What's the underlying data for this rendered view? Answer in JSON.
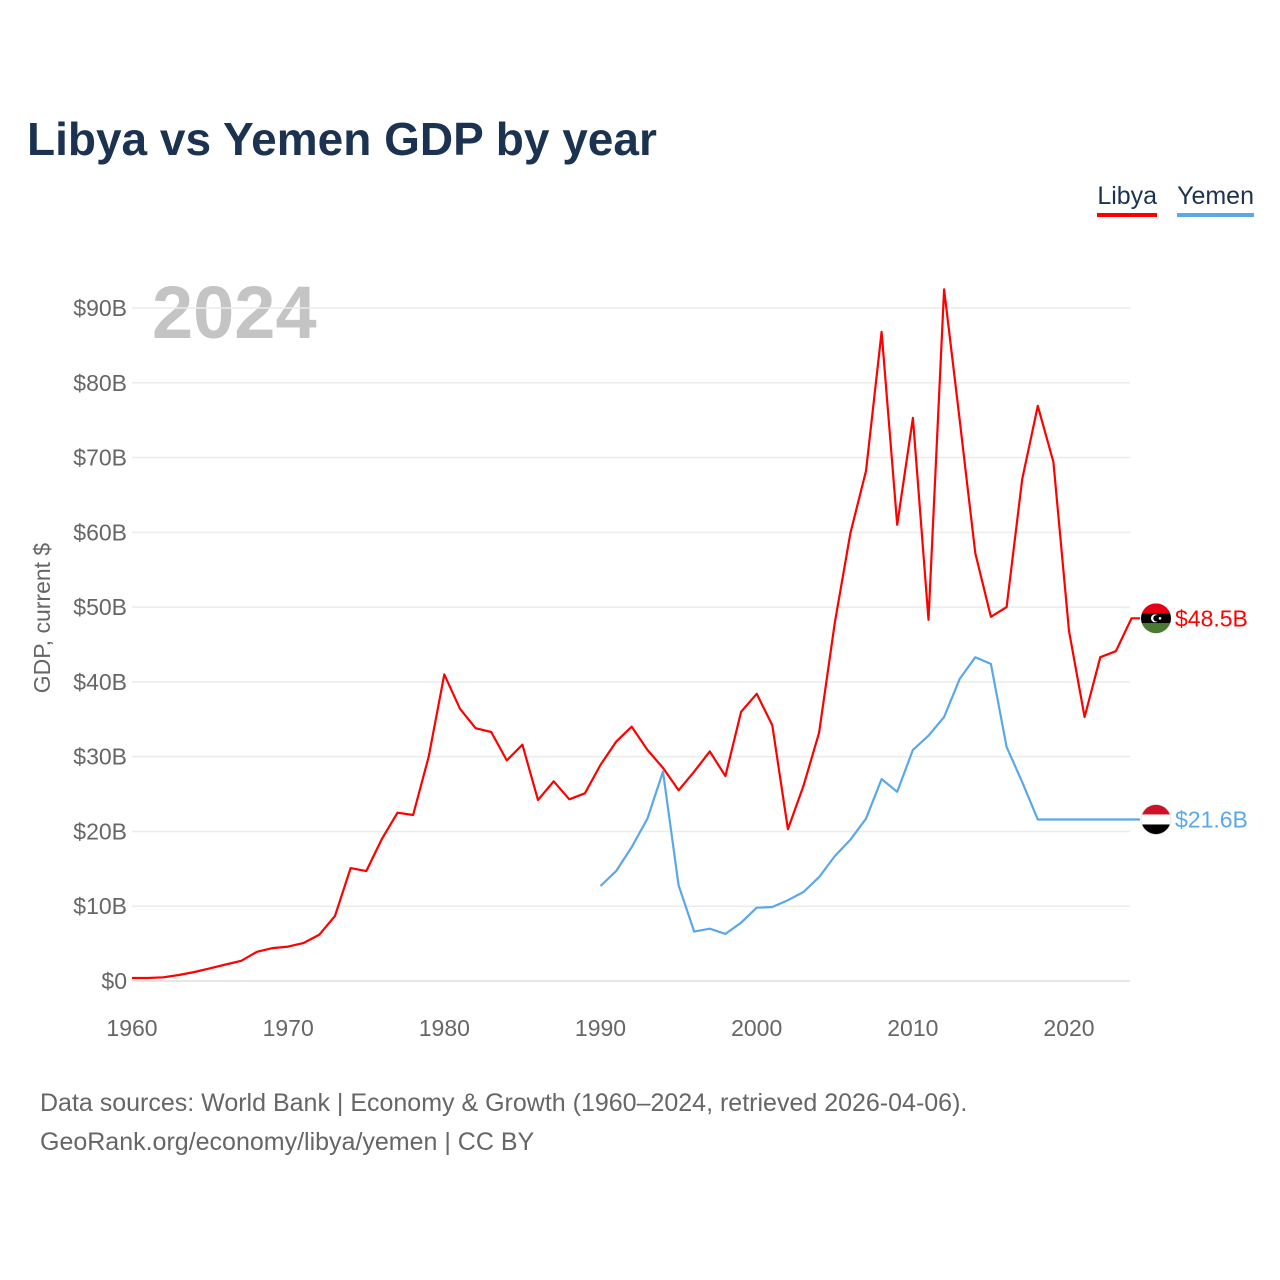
{
  "title": "Libya vs Yemen GDP by year",
  "year_watermark": "2024",
  "footer": {
    "line1": "Data sources: World Bank | Economy & Growth (1960–2024, retrieved 2026-04-06).",
    "line2": "GeoRank.org/economy/libya/yemen | CC BY"
  },
  "chart_data": {
    "type": "line",
    "title": "Libya vs Yemen GDP by year",
    "xlabel": "",
    "ylabel": "GDP, current $",
    "xlim": [
      1960,
      2024
    ],
    "ylim": [
      0,
      90
    ],
    "x_ticks": [
      1960,
      1970,
      1980,
      1990,
      2000,
      2010,
      2020
    ],
    "y_ticks": [
      0,
      10,
      20,
      30,
      40,
      50,
      60,
      70,
      80,
      90
    ],
    "y_tick_labels": [
      "$0",
      "$10B",
      "$20B",
      "$30B",
      "$40B",
      "$50B",
      "$60B",
      "$70B",
      "$80B",
      "$90B"
    ],
    "grid": true,
    "legend": "top-right",
    "series": [
      {
        "name": "Libya",
        "color": "#ff0000",
        "end_label": "$48.5B",
        "start_year": 1960,
        "values": [
          0.4,
          0.4,
          0.5,
          0.8,
          1.2,
          1.7,
          2.2,
          2.7,
          3.9,
          4.4,
          4.6,
          5.1,
          6.2,
          8.7,
          15.1,
          14.7,
          19.0,
          22.5,
          22.2,
          30.0,
          41.0,
          36.4,
          33.8,
          33.3,
          29.5,
          31.6,
          24.2,
          26.7,
          24.3,
          25.1,
          28.9,
          32.0,
          34.0,
          30.9,
          28.5,
          25.5,
          28.0,
          30.7,
          27.4,
          36.0,
          38.4,
          34.2,
          20.3,
          26.1,
          33.2,
          47.9,
          59.9,
          68.2,
          86.8,
          61.0,
          75.3,
          48.3,
          92.5,
          75.0,
          57.2,
          48.7,
          50.0,
          67.1,
          76.9,
          69.4,
          46.8,
          35.3,
          43.3,
          44.1,
          48.5
        ]
      },
      {
        "name": "Yemen",
        "color": "#5aa7ea",
        "end_label": "$21.6B",
        "start_year": 1990,
        "values": [
          12.7,
          14.7,
          17.9,
          21.7,
          28.0,
          12.8,
          6.6,
          7.0,
          6.3,
          7.8,
          9.8,
          9.9,
          10.8,
          11.9,
          13.9,
          16.7,
          18.9,
          21.7,
          27.0,
          25.3,
          30.9,
          32.8,
          35.3,
          40.4,
          43.3,
          42.4,
          31.3,
          26.6,
          21.6,
          21.6,
          21.6,
          21.6,
          21.6,
          21.6,
          21.6
        ]
      }
    ]
  }
}
